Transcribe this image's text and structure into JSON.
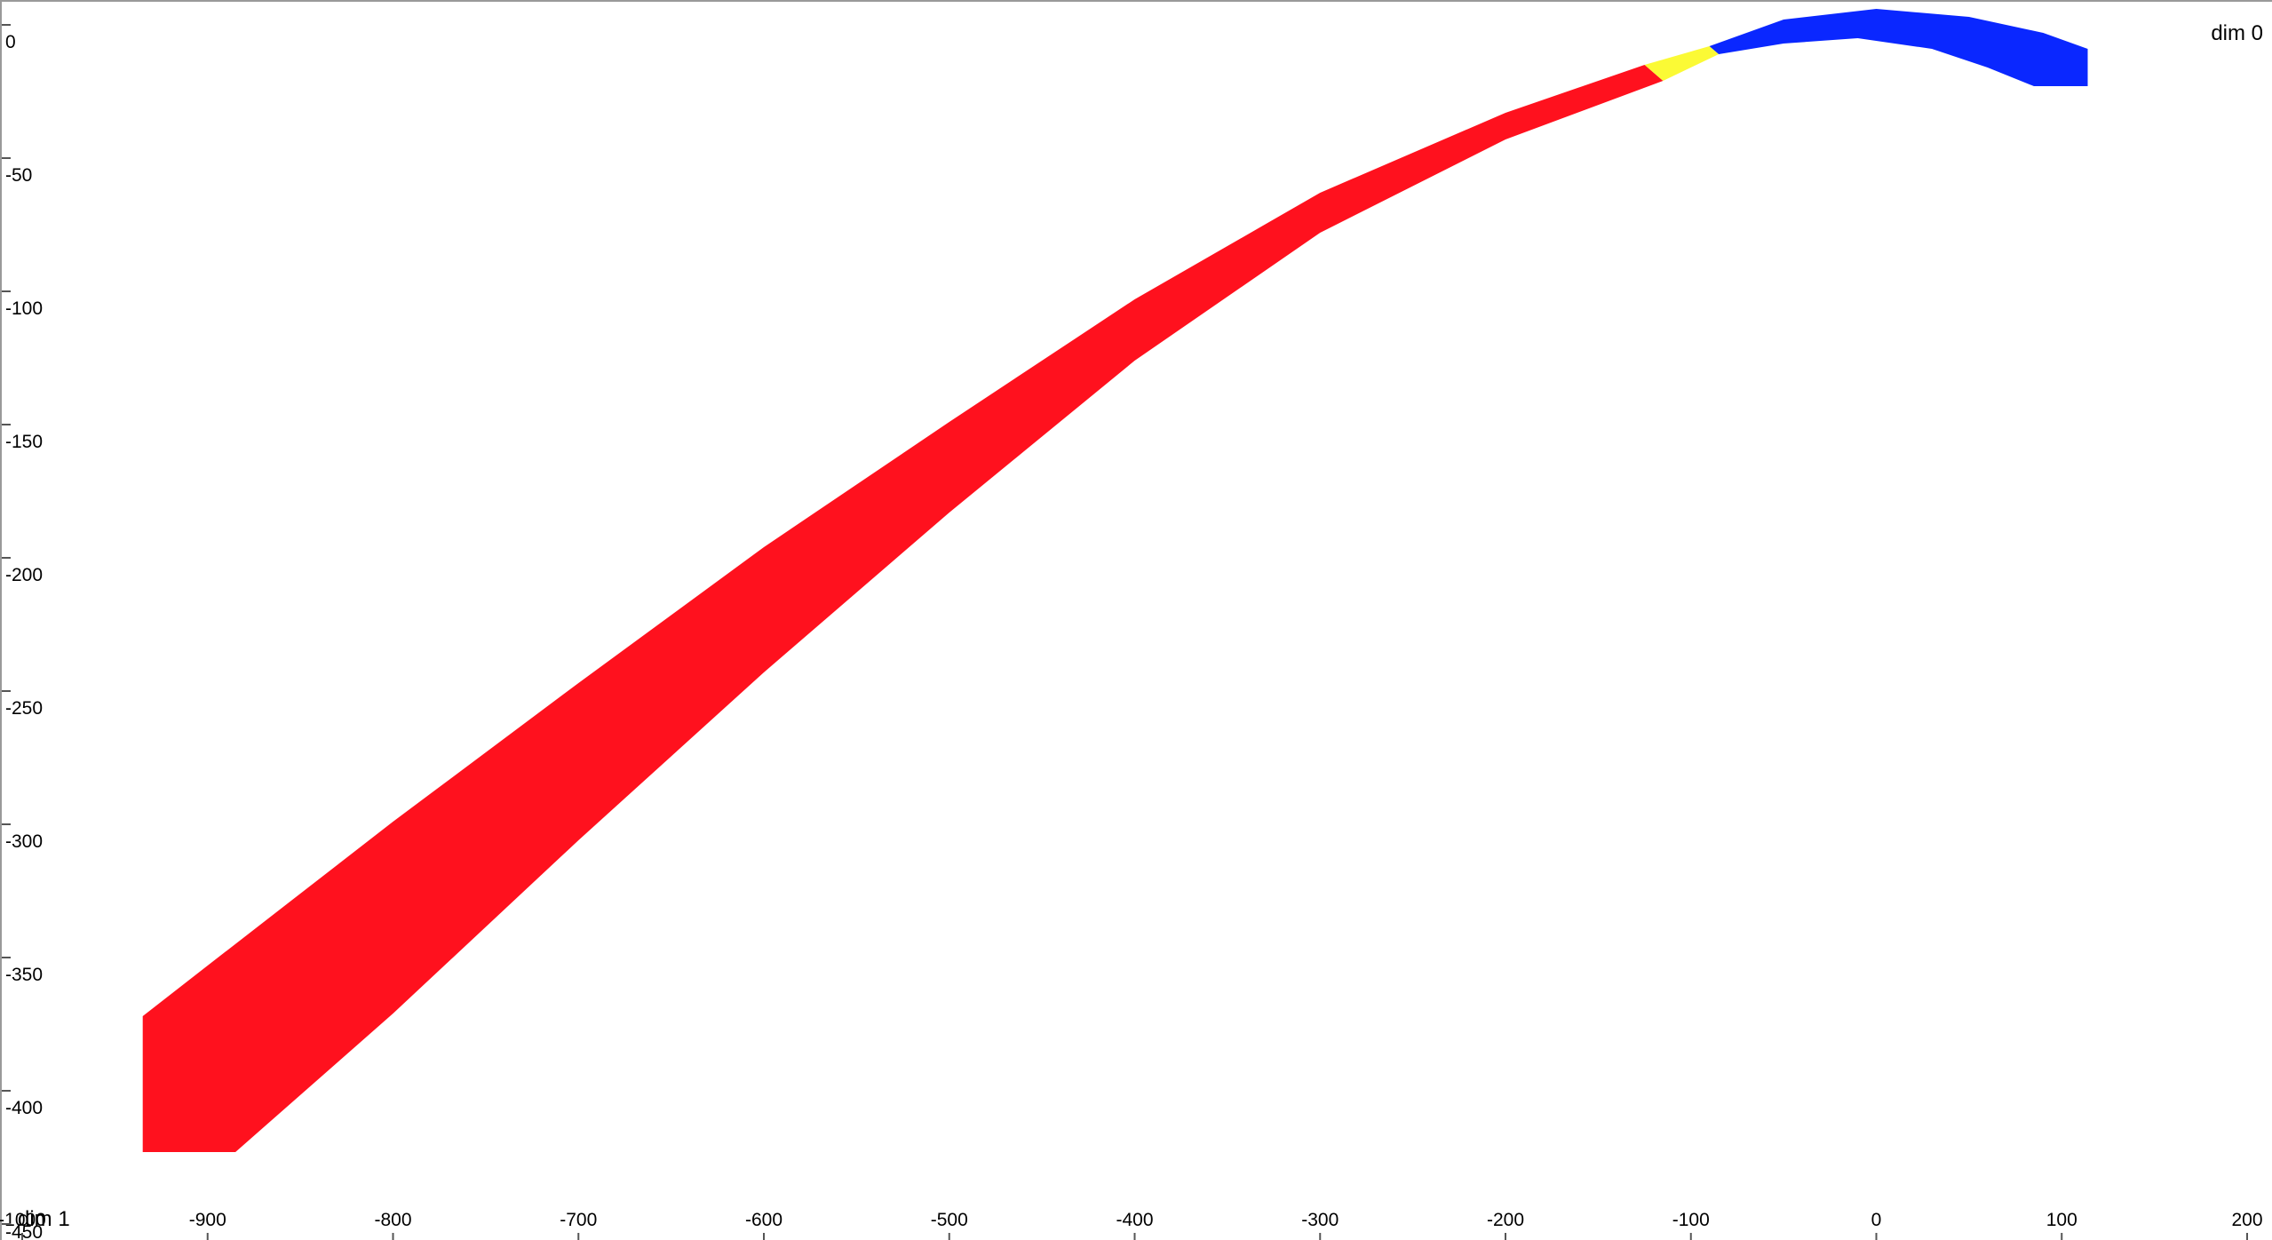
{
  "chart_data": {
    "type": "area",
    "title": "",
    "xlabel": "dim 1",
    "ylabel": "dim 0",
    "xlim": [
      -1000,
      200
    ],
    "ylim": [
      -450,
      0
    ],
    "x_ticks": [
      "-1000",
      "-900",
      "-800",
      "-700",
      "-600",
      "-500",
      "-400",
      "-300",
      "-200",
      "-100",
      "0",
      "100",
      "200"
    ],
    "y_ticks": [
      "0",
      "-50",
      "-100",
      "-150",
      "-200",
      "-250",
      "-300",
      "-350",
      "-400",
      "-450"
    ],
    "grid": false,
    "legend": "none",
    "series": [
      {
        "color": "#ff111e",
        "upper": [
          [
            -935,
            -372
          ],
          [
            -900,
            -353
          ],
          [
            -800,
            -299
          ],
          [
            -700,
            -247
          ],
          [
            -600,
            -196
          ],
          [
            -500,
            -149
          ],
          [
            -400,
            -103
          ],
          [
            -300,
            -63
          ],
          [
            -200,
            -33
          ],
          [
            -125,
            -15
          ]
        ],
        "lower": [
          [
            -935,
            -423
          ],
          [
            -885,
            -423
          ],
          [
            -800,
            -371
          ],
          [
            -700,
            -306
          ],
          [
            -600,
            -243
          ],
          [
            -500,
            -183
          ],
          [
            -400,
            -126
          ],
          [
            -300,
            -78
          ],
          [
            -200,
            -43
          ],
          [
            -115,
            -21
          ]
        ]
      },
      {
        "color": "#fbfa35",
        "upper": [
          [
            -125,
            -15
          ],
          [
            -90,
            -8
          ]
        ],
        "lower": [
          [
            -115,
            -21
          ],
          [
            -85,
            -11
          ]
        ]
      },
      {
        "color": "#0a27ff",
        "upper": [
          [
            -90,
            -8
          ],
          [
            -50,
            2
          ],
          [
            0,
            6
          ],
          [
            50,
            3
          ],
          [
            90,
            -3
          ],
          [
            114,
            -9
          ]
        ],
        "lower": [
          [
            -85,
            -11
          ],
          [
            -50,
            -7
          ],
          [
            -10,
            -5
          ],
          [
            30,
            -9
          ],
          [
            60,
            -16
          ],
          [
            85,
            -23
          ],
          [
            114,
            -23
          ]
        ]
      }
    ]
  }
}
